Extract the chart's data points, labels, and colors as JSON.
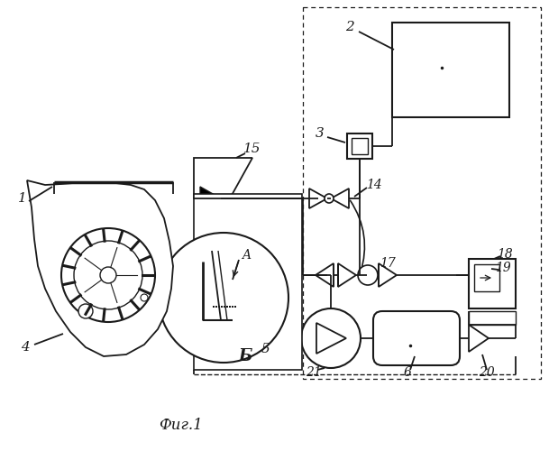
{
  "title": "Фиг.1",
  "bg": "#ffffff",
  "lc": "#1a1a1a",
  "lw": 1.3,
  "fig_w": 6.09,
  "fig_h": 5.0,
  "dpi": 100
}
